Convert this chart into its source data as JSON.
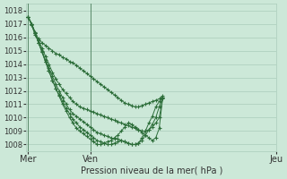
{
  "title": "",
  "xlabel": "Pression niveau de la mer( hPa )",
  "ylabel": "",
  "background_color": "#cce8d8",
  "grid_color": "#aaccbb",
  "line_color": "#2d6e3a",
  "ylim": [
    1007.5,
    1018.5
  ],
  "yticks": [
    1008,
    1009,
    1010,
    1011,
    1012,
    1013,
    1014,
    1015,
    1016,
    1017,
    1018
  ],
  "xtick_labels": [
    "Mer",
    "Ven",
    "Jeu"
  ],
  "xtick_positions": [
    0,
    18,
    72
  ],
  "total_points": 40,
  "xlim": [
    -0.5,
    41
  ],
  "series": [
    [
      1017.5,
      1016.9,
      1016.2,
      1015.9,
      1015.6,
      1015.4,
      1015.2,
      1015.0,
      1014.8,
      1014.7,
      1014.5,
      1014.4,
      1014.2,
      1014.1,
      1013.9,
      1013.7,
      1013.5,
      1013.3,
      1013.1,
      1012.9,
      1012.7,
      1012.5,
      1012.3,
      1012.1,
      1011.9,
      1011.7,
      1011.5,
      1011.3,
      1011.1,
      1011.0,
      1010.9,
      1010.8,
      1010.8,
      1010.9,
      1011.0,
      1011.1,
      1011.2,
      1011.3,
      1011.4,
      1011.6
    ],
    [
      1017.5,
      1017.0,
      1016.4,
      1015.8,
      1015.2,
      1014.6,
      1014.0,
      1013.4,
      1012.9,
      1012.5,
      1012.1,
      1011.8,
      1011.5,
      1011.2,
      1011.0,
      1010.8,
      1010.7,
      1010.6,
      1010.5,
      1010.4,
      1010.3,
      1010.2,
      1010.1,
      1010.0,
      1009.9,
      1009.8,
      1009.7,
      1009.6,
      1009.5,
      1009.4,
      1009.3,
      1009.2,
      1009.1,
      1009.0,
      1009.0,
      1009.1,
      1009.3,
      1009.6,
      1010.0,
      1011.4
    ],
    [
      1017.5,
      1017.0,
      1016.3,
      1015.6,
      1015.0,
      1014.3,
      1013.7,
      1013.1,
      1012.5,
      1012.0,
      1011.5,
      1011.0,
      1010.6,
      1010.3,
      1010.1,
      1009.9,
      1009.7,
      1009.5,
      1009.3,
      1009.1,
      1008.9,
      1008.8,
      1008.7,
      1008.6,
      1008.5,
      1008.4,
      1008.4,
      1008.3,
      1008.2,
      1008.1,
      1008.0,
      1008.0,
      1008.1,
      1008.3,
      1008.7,
      1009.1,
      1009.5,
      1010.0,
      1010.8,
      1011.5
    ],
    [
      1017.5,
      1017.0,
      1016.3,
      1015.6,
      1014.9,
      1014.2,
      1013.5,
      1012.8,
      1012.2,
      1011.7,
      1011.2,
      1010.7,
      1010.3,
      1009.9,
      1009.6,
      1009.3,
      1009.1,
      1008.9,
      1008.7,
      1008.5,
      1008.3,
      1008.2,
      1008.1,
      1008.0,
      1008.0,
      1008.1,
      1008.2,
      1008.3,
      1008.2,
      1008.1,
      1008.0,
      1008.0,
      1008.1,
      1008.5,
      1009.0,
      1009.6,
      1010.1,
      1010.8,
      1011.2,
      1011.5
    ],
    [
      1017.5,
      1017.0,
      1016.3,
      1015.6,
      1014.9,
      1014.2,
      1013.5,
      1012.8,
      1012.2,
      1011.6,
      1011.0,
      1010.5,
      1010.0,
      1009.6,
      1009.2,
      1009.0,
      1008.8,
      1008.6,
      1008.4,
      1008.2,
      1008.0,
      1008.0,
      1008.1,
      1008.2,
      1008.3,
      1008.5,
      1008.7,
      1009.0,
      1009.3,
      1009.6,
      1009.5,
      1009.3,
      1009.1,
      1008.9,
      1008.7,
      1008.5,
      1008.3,
      1008.5,
      1009.2,
      1011.5
    ]
  ]
}
